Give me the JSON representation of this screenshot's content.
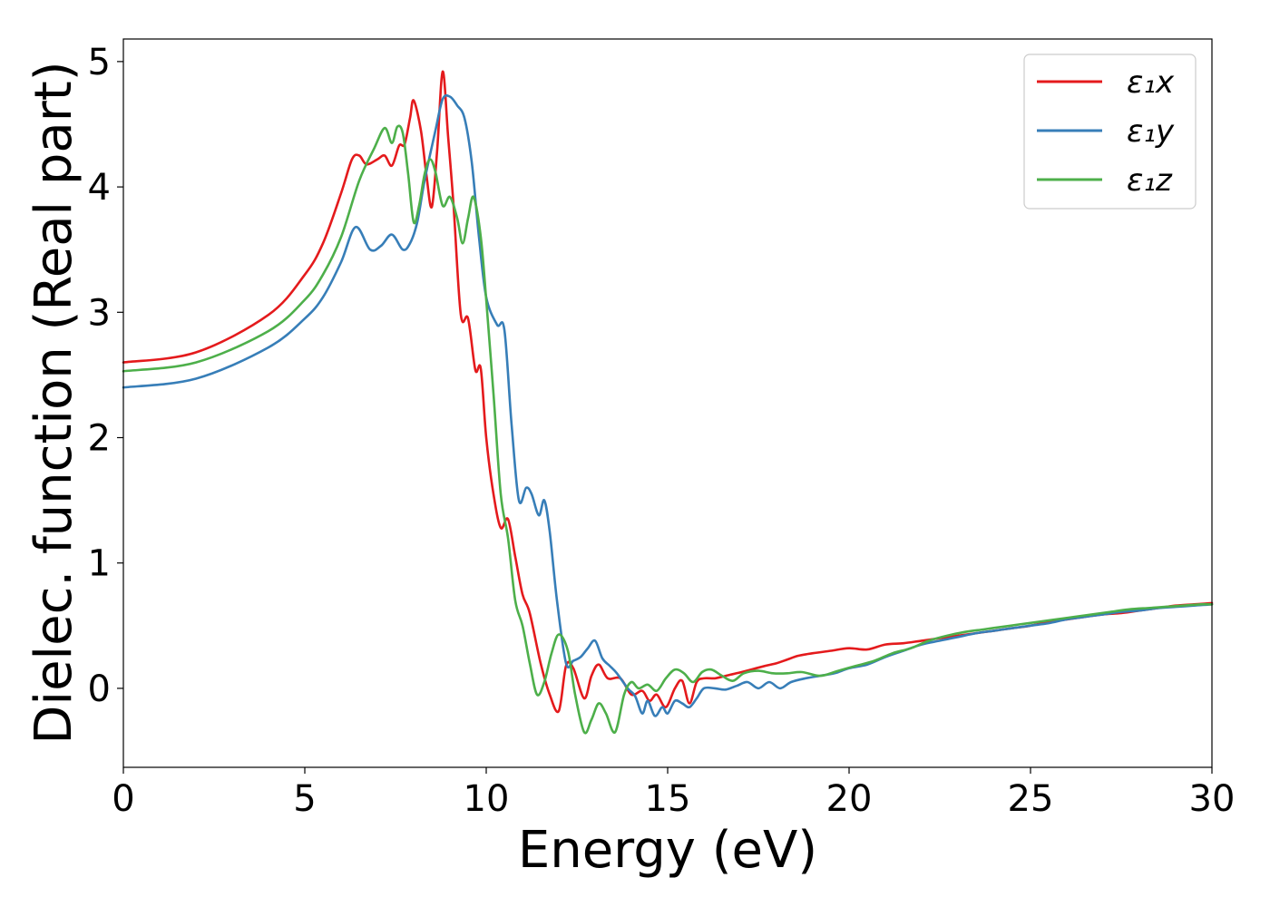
{
  "chart_data": {
    "type": "line",
    "title": "",
    "xlabel": "Energy (eV)",
    "ylabel": "Dielec. function (Real part)",
    "xlim": [
      0,
      30
    ],
    "ylim": [
      -0.63,
      5.18
    ],
    "xticks": [
      0,
      5,
      10,
      15,
      20,
      25,
      30
    ],
    "yticks": [
      0,
      1,
      2,
      3,
      4,
      5
    ],
    "grid": false,
    "legend_position": "top-right",
    "series": [
      {
        "name": "ε₁x",
        "color": "#e41a1c",
        "x": [
          0,
          2,
          4,
          5,
          5.5,
          6,
          6.3,
          6.5,
          6.7,
          7,
          7.2,
          7.4,
          7.6,
          7.75,
          7.9,
          8.0,
          8.2,
          8.35,
          8.5,
          8.65,
          8.8,
          8.95,
          9.1,
          9.3,
          9.5,
          9.7,
          9.85,
          10.0,
          10.2,
          10.4,
          10.6,
          10.8,
          11.0,
          11.2,
          11.5,
          11.75,
          12.0,
          12.2,
          12.4,
          12.7,
          12.9,
          13.1,
          13.35,
          13.7,
          14.0,
          14.3,
          14.5,
          14.7,
          14.95,
          15.2,
          15.4,
          15.6,
          15.8,
          16.0,
          16.3,
          16.6,
          16.9,
          17.3,
          17.7,
          18.0,
          18.3,
          18.6,
          19.0,
          19.5,
          20.0,
          20.5,
          21.0,
          21.5,
          22.0,
          22.5,
          23.0,
          23.5,
          24.0,
          24.5,
          25.0,
          25.5,
          26.0,
          26.5,
          27.0,
          27.5,
          28.0,
          28.5,
          29.0,
          29.5,
          30.0
        ],
        "y": [
          2.6,
          2.68,
          2.98,
          3.3,
          3.55,
          3.95,
          4.22,
          4.25,
          4.18,
          4.22,
          4.25,
          4.17,
          4.33,
          4.34,
          4.55,
          4.69,
          4.45,
          4.1,
          3.84,
          4.3,
          4.92,
          4.4,
          3.85,
          2.98,
          2.95,
          2.54,
          2.55,
          2.0,
          1.55,
          1.28,
          1.35,
          1.05,
          0.75,
          0.6,
          0.2,
          -0.05,
          -0.18,
          0.18,
          0.16,
          -0.08,
          0.1,
          0.19,
          0.08,
          0.08,
          -0.05,
          -0.02,
          -0.1,
          -0.05,
          -0.15,
          0.0,
          0.06,
          -0.12,
          0.05,
          0.08,
          0.08,
          0.1,
          0.12,
          0.15,
          0.18,
          0.2,
          0.23,
          0.26,
          0.28,
          0.3,
          0.32,
          0.31,
          0.35,
          0.36,
          0.38,
          0.4,
          0.42,
          0.44,
          0.46,
          0.48,
          0.5,
          0.53,
          0.55,
          0.57,
          0.59,
          0.6,
          0.62,
          0.64,
          0.66,
          0.67,
          0.68
        ]
      },
      {
        "name": "ε₁y",
        "color": "#377eb8",
        "x": [
          0,
          2,
          4,
          5,
          5.5,
          6,
          6.4,
          6.8,
          7.1,
          7.4,
          7.7,
          7.9,
          8.1,
          8.3,
          8.6,
          8.8,
          9.0,
          9.2,
          9.4,
          9.6,
          9.8,
          10.0,
          10.3,
          10.5,
          10.7,
          10.9,
          11.1,
          11.25,
          11.45,
          11.6,
          11.75,
          11.95,
          12.2,
          12.4,
          12.6,
          12.8,
          13.0,
          13.2,
          13.4,
          13.6,
          13.9,
          14.1,
          14.3,
          14.45,
          14.65,
          14.85,
          15.0,
          15.2,
          15.4,
          15.6,
          15.8,
          16.0,
          16.3,
          16.6,
          16.9,
          17.2,
          17.5,
          17.8,
          18.1,
          18.4,
          18.8,
          19.2,
          19.6,
          20.0,
          20.5,
          21.0,
          21.5,
          22.0,
          22.5,
          23.0,
          23.5,
          24.0,
          24.5,
          25.0,
          25.5,
          26.0,
          26.5,
          27.0,
          27.5,
          28.0,
          28.5,
          29.0,
          29.5,
          30.0
        ],
        "y": [
          2.4,
          2.47,
          2.72,
          2.95,
          3.12,
          3.4,
          3.68,
          3.5,
          3.53,
          3.62,
          3.5,
          3.55,
          3.72,
          4.05,
          4.45,
          4.7,
          4.72,
          4.65,
          4.55,
          4.2,
          3.6,
          3.12,
          2.9,
          2.86,
          2.1,
          1.5,
          1.6,
          1.55,
          1.38,
          1.5,
          1.25,
          0.7,
          0.2,
          0.22,
          0.25,
          0.32,
          0.38,
          0.24,
          0.18,
          0.12,
          0.0,
          -0.06,
          -0.2,
          -0.1,
          -0.22,
          -0.15,
          -0.2,
          -0.1,
          -0.12,
          -0.15,
          -0.08,
          0.0,
          0.0,
          -0.01,
          0.02,
          0.05,
          0.0,
          0.05,
          0.0,
          0.05,
          0.08,
          0.1,
          0.12,
          0.16,
          0.19,
          0.25,
          0.3,
          0.35,
          0.38,
          0.41,
          0.44,
          0.46,
          0.48,
          0.5,
          0.52,
          0.55,
          0.57,
          0.59,
          0.61,
          0.62,
          0.64,
          0.65,
          0.66,
          0.67
        ]
      },
      {
        "name": "ε₁z",
        "color": "#4daf4a",
        "x": [
          0,
          2,
          4,
          5,
          5.5,
          6,
          6.5,
          6.9,
          7.2,
          7.4,
          7.55,
          7.7,
          7.85,
          8.0,
          8.15,
          8.3,
          8.45,
          8.6,
          8.8,
          9.0,
          9.2,
          9.35,
          9.5,
          9.65,
          9.85,
          10.0,
          10.2,
          10.4,
          10.6,
          10.8,
          11.0,
          11.2,
          11.4,
          11.6,
          11.8,
          12.0,
          12.25,
          12.45,
          12.7,
          12.9,
          13.1,
          13.3,
          13.55,
          13.8,
          14.0,
          14.2,
          14.45,
          14.7,
          14.95,
          15.2,
          15.45,
          15.7,
          15.95,
          16.2,
          16.5,
          16.8,
          17.1,
          17.5,
          17.9,
          18.3,
          18.7,
          19.2,
          19.7,
          20.2,
          20.7,
          21.2,
          21.7,
          22.2,
          22.7,
          23.2,
          23.7,
          24.2,
          24.7,
          25.2,
          25.7,
          26.2,
          26.7,
          27.2,
          27.7,
          28.2,
          28.7,
          29.2,
          29.7,
          30.0
        ],
        "y": [
          2.53,
          2.6,
          2.85,
          3.1,
          3.3,
          3.6,
          4.05,
          4.3,
          4.47,
          4.35,
          4.48,
          4.43,
          4.1,
          3.72,
          3.85,
          4.1,
          4.22,
          4.12,
          3.85,
          3.92,
          3.75,
          3.55,
          3.75,
          3.92,
          3.6,
          3.1,
          2.35,
          1.55,
          1.2,
          0.7,
          0.5,
          0.2,
          -0.05,
          0.05,
          0.28,
          0.43,
          0.3,
          -0.05,
          -0.35,
          -0.25,
          -0.12,
          -0.2,
          -0.35,
          -0.05,
          0.05,
          0.0,
          0.03,
          -0.02,
          0.08,
          0.15,
          0.12,
          0.05,
          0.13,
          0.15,
          0.1,
          0.06,
          0.12,
          0.14,
          0.12,
          0.12,
          0.13,
          0.1,
          0.14,
          0.18,
          0.22,
          0.28,
          0.32,
          0.38,
          0.42,
          0.45,
          0.47,
          0.49,
          0.51,
          0.53,
          0.55,
          0.57,
          0.59,
          0.61,
          0.63,
          0.64,
          0.65,
          0.66,
          0.67,
          0.67
        ]
      }
    ]
  }
}
